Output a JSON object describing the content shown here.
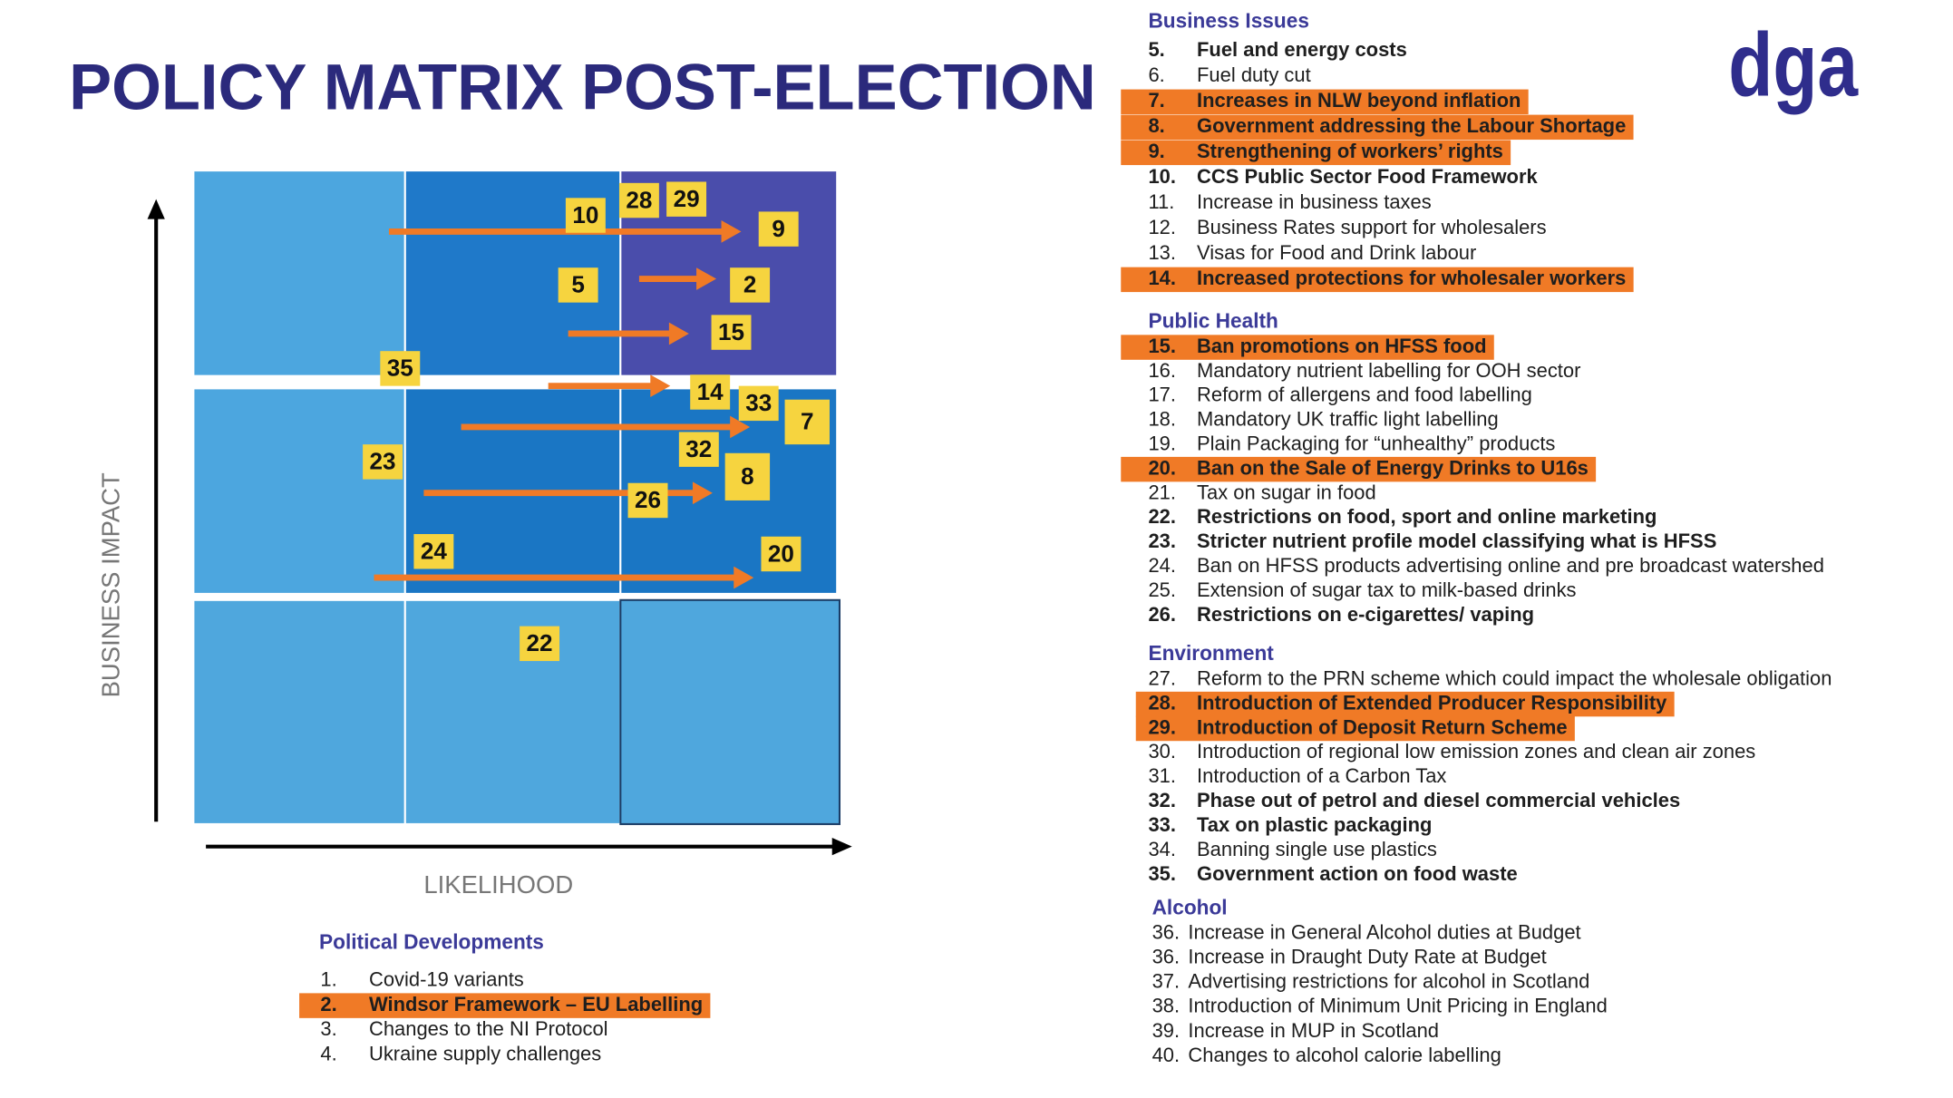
{
  "header": {
    "title": "POLICY MATRIX POST-ELECTION",
    "logo": "dga"
  },
  "matrix": {
    "y_axis_label": "BUSINESS IMPACT",
    "x_axis_label": "LIKELIHOOD",
    "badges": [
      "10",
      "28",
      "29",
      "9",
      "5",
      "2",
      "15",
      "35",
      "14",
      "33",
      "7",
      "23",
      "32",
      "8",
      "26",
      "24",
      "20",
      "22"
    ]
  },
  "political_developments": {
    "title": "Political Developments",
    "items": [
      {
        "number": "1.",
        "text": "Covid-19 variants",
        "bold": false,
        "highlighted": false
      },
      {
        "number": "2.",
        "text": "Windsor Framework – EU Labelling",
        "bold": true,
        "highlighted": true
      },
      {
        "number": "3.",
        "text": "Changes to the NI Protocol",
        "bold": false,
        "highlighted": false
      },
      {
        "number": "4.",
        "text": "Ukraine supply challenges",
        "bold": false,
        "highlighted": false
      }
    ]
  },
  "sections": [
    {
      "title": "Business Issues",
      "items": [
        {
          "number": "5.",
          "text": "Fuel and energy costs",
          "bold": true,
          "highlighted": false
        },
        {
          "number": "6.",
          "text": "Fuel duty cut",
          "bold": false,
          "highlighted": false
        },
        {
          "number": "7.",
          "text": "Increases in NLW beyond inflation",
          "bold": true,
          "highlighted": true
        },
        {
          "number": "8.",
          "text": "Government addressing the Labour Shortage",
          "bold": true,
          "highlighted": true
        },
        {
          "number": "9.",
          "text": "Strengthening of workers’ rights",
          "bold": true,
          "highlighted": true
        },
        {
          "number": "10.",
          "text": "CCS Public Sector Food Framework",
          "bold": true,
          "highlighted": false
        },
        {
          "number": "11.",
          "text": "Increase in business taxes",
          "bold": false,
          "highlighted": false
        },
        {
          "number": "12.",
          "text": "Business Rates support for wholesalers",
          "bold": false,
          "highlighted": false
        },
        {
          "number": "13.",
          "text": "Visas for Food and Drink labour",
          "bold": false,
          "highlighted": false
        },
        {
          "number": "14.",
          "text": "Increased protections for wholesaler workers",
          "bold": true,
          "highlighted": true
        }
      ]
    },
    {
      "title": "Public Health",
      "items": [
        {
          "number": "15.",
          "text": "Ban promotions on HFSS food",
          "bold": true,
          "highlighted": true
        },
        {
          "number": "16.",
          "text": "Mandatory nutrient labelling for OOH sector",
          "bold": false,
          "highlighted": false
        },
        {
          "number": "17.",
          "text": "Reform of allergens and food labelling",
          "bold": false,
          "highlighted": false
        },
        {
          "number": "18.",
          "text": "Mandatory UK traffic light labelling",
          "bold": false,
          "highlighted": false
        },
        {
          "number": "19.",
          "text": "Plain Packaging for “unhealthy” products",
          "bold": false,
          "highlighted": false
        },
        {
          "number": "20.",
          "text": "Ban on the Sale of Energy Drinks to U16s",
          "bold": true,
          "highlighted": true
        },
        {
          "number": "21.",
          "text": "Tax on sugar in food",
          "bold": false,
          "highlighted": false
        },
        {
          "number": "22.",
          "text": "Restrictions on food, sport and online marketing",
          "bold": true,
          "highlighted": false
        },
        {
          "number": "23.",
          "text": "Stricter nutrient profile model classifying what is HFSS",
          "bold": true,
          "highlighted": false
        },
        {
          "number": "24.",
          "text": "Ban on HFSS products advertising online and pre broadcast watershed",
          "bold": false,
          "highlighted": false
        },
        {
          "number": "25.",
          "text": "Extension of sugar tax to milk-based drinks",
          "bold": false,
          "highlighted": false
        },
        {
          "number": "26.",
          "text": "Restrictions on e-cigarettes/ vaping",
          "bold": true,
          "highlighted": false
        }
      ]
    },
    {
      "title": "Environment",
      "items": [
        {
          "number": "27.",
          "text": "Reform to the PRN scheme which could impact the wholesale obligation",
          "bold": false,
          "highlighted": false
        },
        {
          "number": "28.",
          "text": "Introduction of Extended Producer Responsibility",
          "bold": true,
          "highlighted": true
        },
        {
          "number": "29.",
          "text": "Introduction of Deposit Return Scheme",
          "bold": true,
          "highlighted": true
        },
        {
          "number": "30.",
          "text": "Introduction of regional low emission zones and clean air zones",
          "bold": false,
          "highlighted": false
        },
        {
          "number": "31.",
          "text": "Introduction of a Carbon Tax",
          "bold": false,
          "highlighted": false
        },
        {
          "number": "32.",
          "text": "Phase out of petrol and diesel commercial vehicles",
          "bold": true,
          "highlighted": false
        },
        {
          "number": "33.",
          "text": "Tax on plastic packaging",
          "bold": true,
          "highlighted": false
        },
        {
          "number": "34.",
          "text": "Banning single use plastics",
          "bold": false,
          "highlighted": false
        },
        {
          "number": "35.",
          "text": "Government action on food waste",
          "bold": true,
          "highlighted": false
        }
      ]
    },
    {
      "title": "Alcohol",
      "items": [
        {
          "number": "36.",
          "text": "Increase in General Alcohol duties at Budget",
          "bold": false,
          "highlighted": false
        },
        {
          "number": "36.",
          "text": "Increase in Draught Duty Rate at Budget",
          "bold": false,
          "highlighted": false
        },
        {
          "number": "37.",
          "text": "Advertising restrictions for alcohol in Scotland",
          "bold": false,
          "highlighted": false
        },
        {
          "number": "38.",
          "text": "Introduction of Minimum Unit Pricing in England",
          "bold": false,
          "highlighted": false
        },
        {
          "number": "39.",
          "text": "Increase in MUP in Scotland",
          "bold": false,
          "highlighted": false
        },
        {
          "number": "40.",
          "text": "Changes to alcohol calorie labelling",
          "bold": false,
          "highlighted": false
        }
      ]
    }
  ]
}
